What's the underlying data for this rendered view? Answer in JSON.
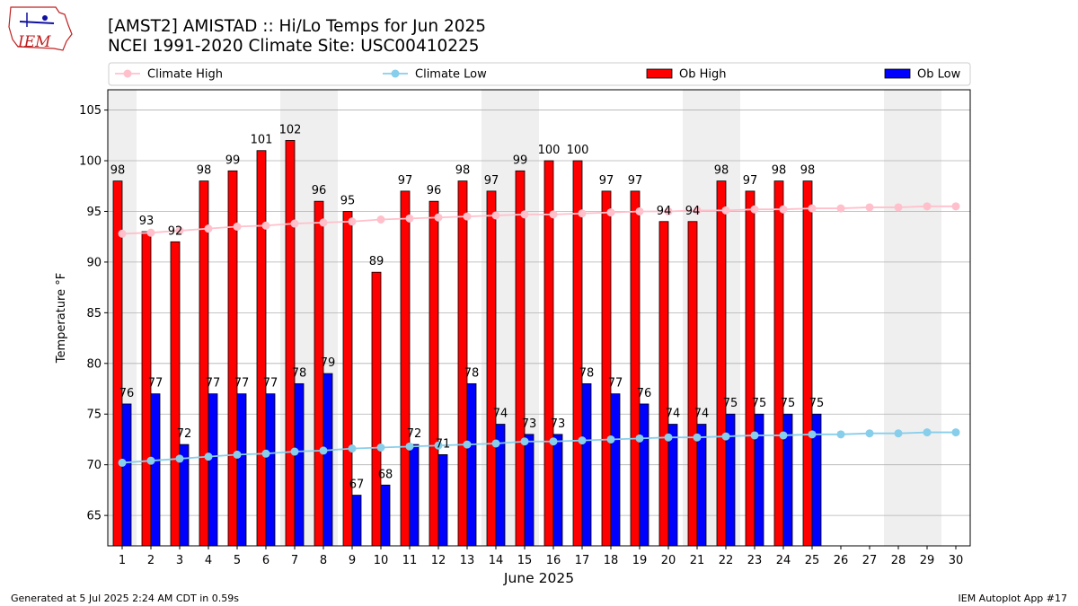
{
  "title_line1": "[AMST2] AMISTAD :: Hi/Lo Temps for Jun 2025",
  "title_line2": "NCEI 1991-2020 Climate Site: USC00410225",
  "logo_text": "IEM",
  "footer_left": "Generated at 5 Jul 2025 2:24 AM CDT in 0.59s",
  "footer_right": "IEM Autoplot App #17",
  "colors": {
    "ob_high": "#ff0000",
    "ob_low": "#0000ff",
    "climate_high": "#ffc0cb",
    "climate_low": "#87ceeb",
    "weekend_shade": "#efefef",
    "grid": "#b0b0b0"
  },
  "chart_data": {
    "type": "bar",
    "xlabel": "June 2025",
    "ylabel": "Temperature °F",
    "ylim": [
      62,
      107
    ],
    "yticks": [
      65,
      70,
      75,
      80,
      85,
      90,
      95,
      100,
      105
    ],
    "grid": true,
    "legend_position": "top",
    "days": [
      1,
      2,
      3,
      4,
      5,
      6,
      7,
      8,
      9,
      10,
      11,
      12,
      13,
      14,
      15,
      16,
      17,
      18,
      19,
      20,
      21,
      22,
      23,
      24,
      25,
      26,
      27,
      28,
      29,
      30
    ],
    "weekend_days": [
      1,
      7,
      8,
      14,
      15,
      21,
      22,
      28,
      29
    ],
    "series": [
      {
        "name": "Climate High",
        "kind": "line",
        "values": [
          92.8,
          92.9,
          93.1,
          93.3,
          93.5,
          93.6,
          93.8,
          93.9,
          94.0,
          94.2,
          94.3,
          94.4,
          94.5,
          94.6,
          94.7,
          94.7,
          94.8,
          94.9,
          95.0,
          95.0,
          95.1,
          95.1,
          95.2,
          95.2,
          95.3,
          95.3,
          95.4,
          95.4,
          95.5,
          95.5
        ]
      },
      {
        "name": "Climate Low",
        "kind": "line",
        "values": [
          70.2,
          70.4,
          70.6,
          70.8,
          71.0,
          71.1,
          71.3,
          71.4,
          71.6,
          71.7,
          71.8,
          71.9,
          72.0,
          72.1,
          72.3,
          72.3,
          72.4,
          72.5,
          72.6,
          72.7,
          72.7,
          72.8,
          72.9,
          72.9,
          73.0,
          73.0,
          73.1,
          73.1,
          73.2,
          73.2
        ]
      },
      {
        "name": "Ob High",
        "kind": "bar",
        "values": [
          98,
          93,
          92,
          98,
          99,
          101,
          102,
          96,
          95,
          89,
          97,
          96,
          98,
          97,
          99,
          100,
          100,
          97,
          97,
          94,
          94,
          98,
          97,
          98,
          98
        ]
      },
      {
        "name": "Ob Low",
        "kind": "bar",
        "values": [
          76,
          77,
          72,
          77,
          77,
          77,
          78,
          79,
          67,
          68,
          72,
          71,
          78,
          74,
          73,
          73,
          78,
          77,
          76,
          74,
          74,
          75,
          75,
          75,
          75
        ]
      }
    ]
  }
}
